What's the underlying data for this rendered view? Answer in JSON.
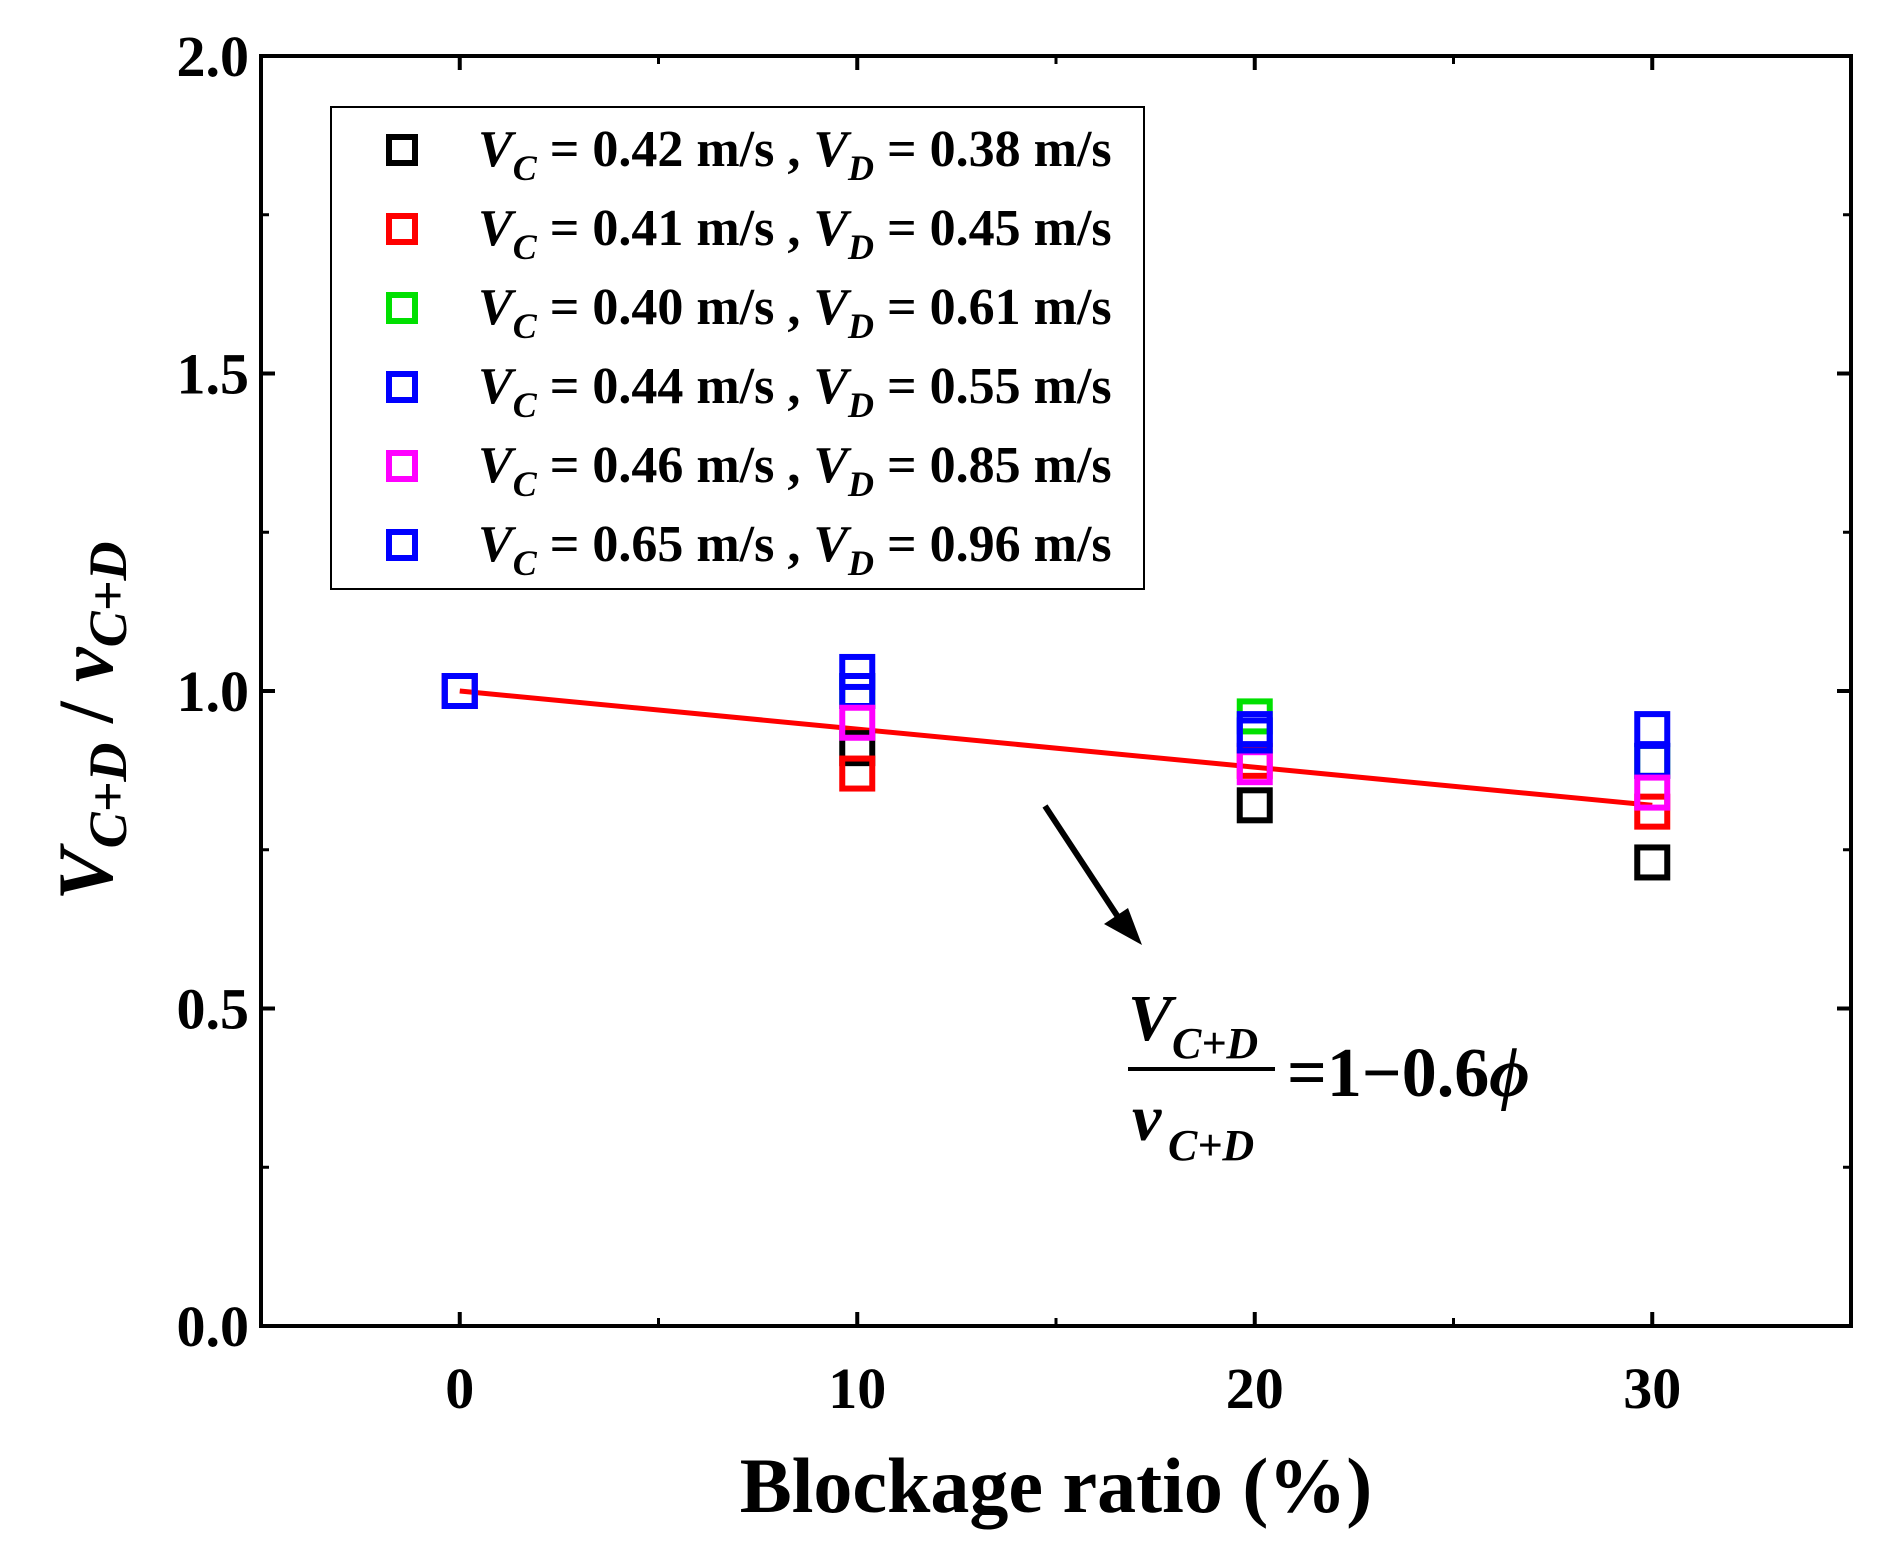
{
  "chart_data": {
    "type": "scatter",
    "title": "",
    "xlabel": "Blockage ratio (%)",
    "ylabel": {
      "main_v": "V",
      "main_sub": "C+D",
      "sep": " / ",
      "den_v": "v",
      "den_sub": "C+D"
    },
    "xlim": [
      -5,
      35
    ],
    "ylim": [
      0,
      2
    ],
    "xticks": [
      0,
      10,
      20,
      30
    ],
    "xtick_labels": [
      "0",
      "10",
      "20",
      "30"
    ],
    "yticks": [
      0,
      0.5,
      1,
      1.5,
      2
    ],
    "ytick_labels": [
      "0.0",
      "0.5",
      "1.0",
      "1.5",
      "2.0"
    ],
    "legend_position": "top-left",
    "series": [
      {
        "name": "V_C = 0.42 m/s , V_D = 0.38 m/s",
        "vc": "0.42",
        "vd": "0.38",
        "color": "#000000",
        "x": [
          0,
          10,
          20,
          30
        ],
        "y": [
          1.0,
          0.91,
          0.82,
          0.73
        ]
      },
      {
        "name": "V_C = 0.41 m/s , V_D = 0.45 m/s",
        "vc": "0.41",
        "vd": "0.45",
        "color": "#ff0000",
        "x": [
          0,
          10,
          20,
          30
        ],
        "y": [
          1.0,
          0.87,
          0.89,
          0.81
        ]
      },
      {
        "name": "V_C = 0.40 m/s , V_D = 0.61 m/s",
        "vc": "0.40",
        "vd": "0.61",
        "color": "#00e000",
        "x": [
          0,
          10,
          20,
          30
        ],
        "y": [
          1.0,
          1.0,
          0.96,
          0.89
        ]
      },
      {
        "name": "V_C = 0.44 m/s , V_D = 0.55 m/s",
        "vc": "0.44",
        "vd": "0.55",
        "color": "#0000ff",
        "x": [
          0,
          10,
          20,
          30
        ],
        "y": [
          1.0,
          1.0,
          0.94,
          0.89
        ]
      },
      {
        "name": "V_C = 0.46 m/s , V_D = 0.85 m/s",
        "vc": "0.46",
        "vd": "0.85",
        "color": "#ff00ff",
        "x": [
          0,
          10,
          20,
          30
        ],
        "y": [
          1.0,
          0.95,
          0.88,
          0.84
        ]
      },
      {
        "name": "V_C = 0.65 m/s , V_D = 0.96 m/s",
        "vc": "0.65",
        "vd": "0.96",
        "color": "#0000ff",
        "x": [
          0,
          10,
          20,
          30
        ],
        "y": [
          1.0,
          1.03,
          0.93,
          0.94
        ]
      }
    ],
    "fit_line": {
      "x": [
        0,
        30
      ],
      "y": [
        1.0,
        0.82
      ],
      "color": "#ff0000"
    },
    "annotation": {
      "num_v": "V",
      "num_sub": "C+D",
      "den_v": "v",
      "den_sub": "C+D",
      "rhs": "=1−0.6",
      "phi": "ϕ"
    }
  }
}
